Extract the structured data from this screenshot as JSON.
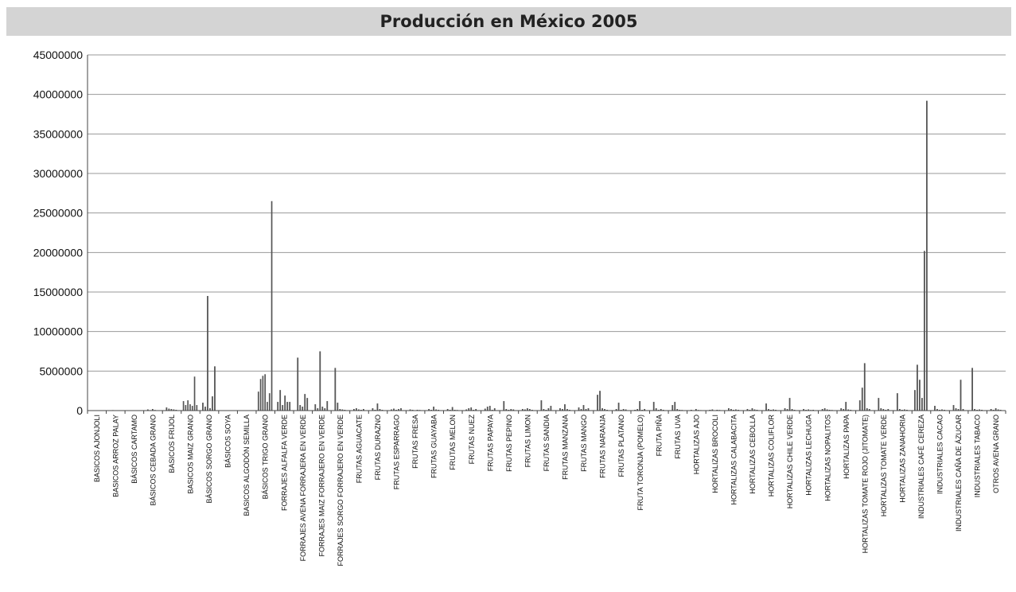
{
  "chart_data": {
    "type": "bar",
    "title": "Producción en México 2005",
    "xlabel": "",
    "ylabel": "",
    "ylim": [
      0,
      45000000
    ],
    "yticks": [
      0,
      5000000,
      10000000,
      15000000,
      20000000,
      25000000,
      30000000,
      35000000,
      40000000,
      45000000
    ],
    "ytick_labels": [
      "0",
      "5000000",
      "10000000",
      "15000000",
      "20000000",
      "25000000",
      "30000000",
      "35000000",
      "40000000",
      "45000000"
    ],
    "grid": "horizontal",
    "bar_color": "#555555",
    "categories": [
      "BASICOS AJONJOLI",
      "BASICOS ARROZ PALAY",
      "BÁSICOS CARTAMO",
      "BÁSICOS CEBADA GRANO",
      "BASICOS FRIJOL",
      "BASICOS MAIZ GRANO",
      "BÁSICOS SORGO GRANO",
      "BÁSICOS SOYA",
      "BASICOS ALGODÓN SEMILLA",
      "BÁSICOS TRIGO GRANO",
      "FORRAJES ALFALFA VERDE",
      "FORRAJES AVENA FORRAJERA EN VERDE",
      "FORRAJES MAIZ FORRAJERO EN VERDE",
      "FORRAJES SORGO FORRAJERO EN VERDE",
      "FRUTAS AGUACATE",
      "FRUTAS DURAZNO",
      "FRUTAS ESPARRAGO",
      "FRUTAS FRESA",
      "FRUTAS GUAYABA",
      "FRUTAS MELON",
      "FRUTAS NUEZ",
      "FRUTAS PAPAYA",
      "FRUTAS PEPINO",
      "FRUTAS LIMON",
      "FRUTAS SANDIA",
      "FRUTAS MANZANA",
      "FRUTAS MANGO",
      "FRUTAS NARANJA",
      "FRUTAS PLATANO",
      "FRUTA TORONJA (POMELO)",
      "FRUTA PIÑA",
      "FRUTAS UVA",
      "HORTALIZAS AJO",
      "HORTALIZAS BROCOLI",
      "HORTALIZAS CALABACITA",
      "HORTALIZAS CEBOLLA",
      "HORTALIZAS COLIFLOR",
      "HORTALIZAS CHILE VERDE",
      "HORTALIZAS LECHUGA",
      "HORTALIZAS NOPALITOS",
      "HORTALIZAS PAPA",
      "HORTALIZAS TOMATE ROJO (JITOMATE)",
      "HORTALIZAS TOMATE VERDE",
      "HORTALIZAS ZANAHORIA",
      "INDUSTRIALES CAFÉ CEREZA",
      "INDUSTRIALES CACAO",
      "INDUSTRIALES CAÑA DE ÁZUCAR",
      "INDUSTRIALES TABACO",
      "OTROS AVENA GRANO"
    ],
    "values": [
      [
        20000,
        10000,
        40000,
        15000,
        10000
      ],
      [
        30000,
        60000,
        20000,
        10000,
        40000
      ],
      [
        20000,
        10000,
        15000,
        30000,
        10000
      ],
      [
        150000,
        60000,
        200000,
        80000,
        50000
      ],
      [
        400000,
        250000,
        200000,
        150000,
        100000
      ],
      [
        1200000,
        700000,
        1300000,
        800000,
        600000,
        4300000,
        700000
      ],
      [
        1000000,
        500000,
        14500000,
        300000,
        1800000,
        5600000
      ],
      [
        30000,
        20000,
        10000,
        15000,
        20000
      ],
      [
        20000,
        10000,
        30000,
        15000,
        10000
      ],
      [
        2400000,
        4000000,
        4400000,
        4600000,
        1100000,
        2200000,
        26500000
      ],
      [
        1100000,
        2600000,
        700000,
        1900000,
        1100000,
        1100000
      ],
      [
        6700000,
        700000,
        500000,
        2100000,
        1600000
      ],
      [
        800000,
        300000,
        7500000,
        500000,
        300000,
        1200000
      ],
      [
        5400000,
        1000000,
        200000,
        150000,
        100000
      ],
      [
        200000,
        300000,
        150000,
        100000,
        200000
      ],
      [
        300000,
        100000,
        900000,
        200000,
        100000
      ],
      [
        150000,
        250000,
        100000,
        200000,
        300000
      ],
      [
        150000,
        100000,
        50000,
        100000,
        80000
      ],
      [
        200000,
        100000,
        500000,
        150000,
        100000
      ],
      [
        200000,
        100000,
        450000,
        100000,
        80000
      ],
      [
        150000,
        300000,
        400000,
        100000,
        200000
      ],
      [
        250000,
        500000,
        600000,
        100000,
        300000
      ],
      [
        1200000,
        200000,
        100000,
        200000,
        150000
      ],
      [
        200000,
        150000,
        300000,
        200000,
        100000
      ],
      [
        1300000,
        200000,
        100000,
        300000,
        600000
      ],
      [
        300000,
        200000,
        800000,
        200000,
        100000
      ],
      [
        400000,
        200000,
        700000,
        200000,
        300000
      ],
      [
        2000000,
        2500000,
        300000,
        200000,
        100000
      ],
      [
        200000,
        1000000,
        100000,
        200000,
        150000
      ],
      [
        100000,
        200000,
        1200000,
        100000,
        200000
      ],
      [
        1100000,
        300000,
        100000,
        200000,
        100000
      ],
      [
        700000,
        1100000,
        200000,
        100000,
        80000
      ],
      [
        100000,
        50000,
        200000,
        80000,
        60000
      ],
      [
        100000,
        150000,
        50000,
        100000,
        80000
      ],
      [
        300000,
        200000,
        100000,
        150000,
        100000
      ],
      [
        200000,
        100000,
        300000,
        150000,
        100000
      ],
      [
        900000,
        200000,
        100000,
        150000,
        100000
      ],
      [
        300000,
        200000,
        1600000,
        200000,
        100000
      ],
      [
        200000,
        100000,
        150000,
        80000,
        100000
      ],
      [
        200000,
        300000,
        150000,
        100000,
        80000
      ],
      [
        300000,
        200000,
        1100000,
        150000,
        100000
      ],
      [
        1300000,
        2900000,
        6000000,
        300000,
        200000
      ],
      [
        1600000,
        300000,
        200000,
        100000,
        200000
      ],
      [
        2200000,
        200000,
        100000,
        150000,
        100000
      ],
      [
        2600000,
        5800000,
        3900000,
        1600000,
        20200000,
        39200000
      ],
      [
        600000,
        200000,
        100000,
        150000,
        100000
      ],
      [
        700000,
        300000,
        200000,
        3900000,
        200000
      ],
      [
        5400000,
        200000,
        100000,
        150000,
        100000
      ],
      [
        200000,
        100000,
        300000,
        150000,
        100000
      ]
    ]
  }
}
